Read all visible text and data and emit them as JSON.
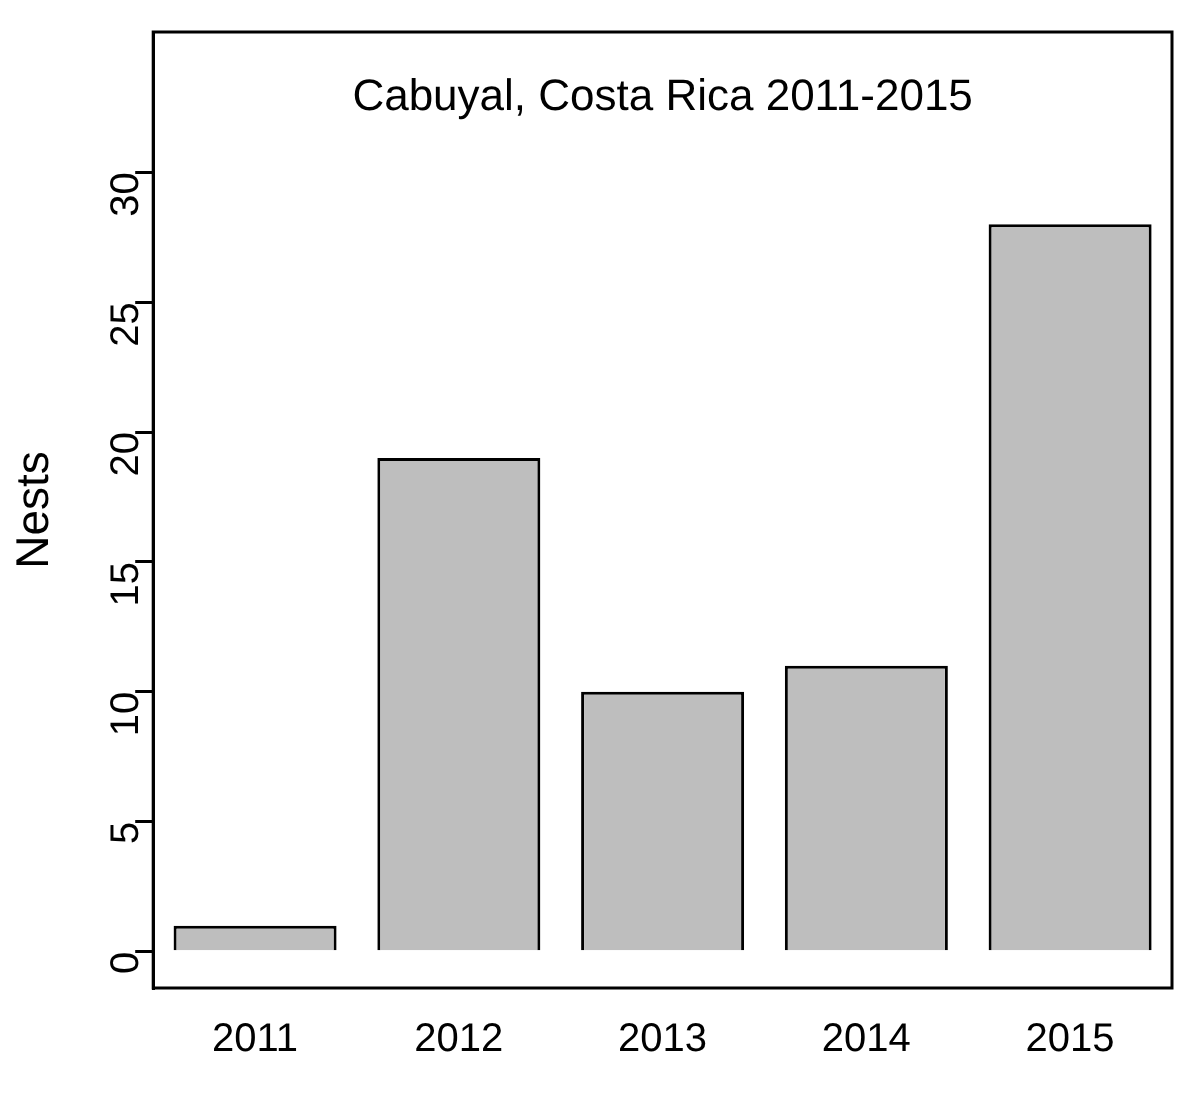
{
  "chart_data": {
    "type": "bar",
    "title": "Cabuyal, Costa Rica 2011-2015",
    "ylabel": "Nests",
    "categories": [
      "2011",
      "2012",
      "2013",
      "2014",
      "2015"
    ],
    "values": [
      1,
      19,
      10,
      11,
      28
    ],
    "color": "#bebebe",
    "ylim": [
      -1.4,
      35.4
    ],
    "yticks": [
      0,
      5,
      10,
      15,
      20,
      25,
      30
    ],
    "grid": false,
    "legend": false
  }
}
